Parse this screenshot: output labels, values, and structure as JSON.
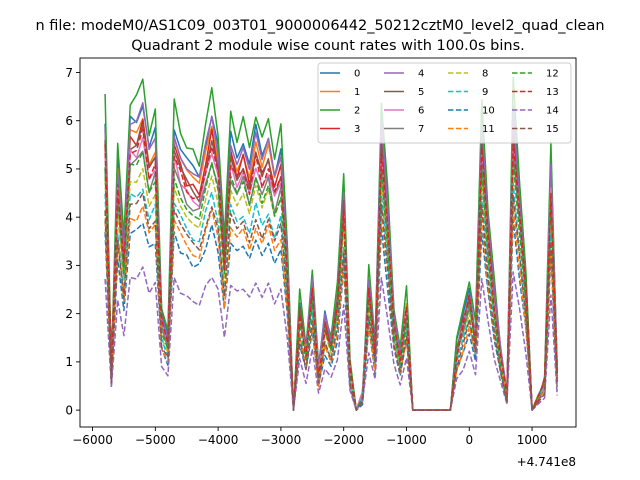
{
  "chart_data": {
    "type": "line",
    "suptitle": "n file: modeM0/AS1C09_003T01_9000006442_50212cztM0_level2_quad_clean",
    "title": "Quadrant 2 module wise count rates with 100.0s bins.",
    "offset_label": "+4.741e8",
    "xlim": [
      -6200,
      1700
    ],
    "ylim": [
      -0.35,
      7.3
    ],
    "xticks": [
      -6000,
      -5000,
      -4000,
      -3000,
      -2000,
      -1000,
      0,
      1000
    ],
    "yticks": [
      0,
      1,
      2,
      3,
      4,
      5,
      6,
      7
    ],
    "grid": false,
    "legend_placement": "top-right",
    "x": [
      -5800,
      -5700,
      -5600,
      -5500,
      -5400,
      -5300,
      -5200,
      -5100,
      -5000,
      -4900,
      -4800,
      -4700,
      -4600,
      -4500,
      -4400,
      -4300,
      -4200,
      -4100,
      -4000,
      -3900,
      -3800,
      -3700,
      -3600,
      -3500,
      -3400,
      -3300,
      -3200,
      -3100,
      -3000,
      -2900,
      -2800,
      -2700,
      -2600,
      -2500,
      -2400,
      -2300,
      -2200,
      -2100,
      -2000,
      -1900,
      -1800,
      -1700,
      -1600,
      -1500,
      -1400,
      -1300,
      -1200,
      -1100,
      -1000,
      -900,
      -800,
      -700,
      -600,
      -500,
      -400,
      -300,
      -200,
      -100,
      0,
      100,
      200,
      300,
      400,
      500,
      600,
      700,
      800,
      900,
      1000,
      1100,
      1200,
      1300,
      1400
    ],
    "base_profile": [
      1.0,
      0.15,
      0.85,
      0.55,
      1.0,
      1.0,
      1.06,
      0.9,
      0.95,
      0.33,
      0.27,
      0.98,
      0.9,
      0.85,
      0.82,
      0.8,
      0.92,
      1.02,
      0.9,
      0.55,
      0.95,
      0.88,
      0.93,
      0.84,
      0.96,
      0.86,
      0.94,
      0.82,
      0.9,
      0.55,
      0.0,
      0.37,
      0.22,
      0.45,
      0.13,
      0.32,
      0.23,
      0.4,
      0.78,
      0.15,
      0.0,
      0.05,
      0.45,
      0.22,
      1.0,
      0.7,
      0.33,
      0.21,
      0.38,
      0.0,
      0.0,
      0.0,
      0.0,
      0.0,
      0.0,
      0.0,
      0.22,
      0.32,
      0.43,
      0.27,
      1.0,
      0.65,
      0.4,
      0.2,
      0.05,
      1.05,
      0.75,
      0.45,
      0.0,
      0.05,
      0.1,
      0.85,
      0.13
    ],
    "series": [
      {
        "name": "0",
        "color": "#1f77b4",
        "dash": false,
        "amp": 6.05
      },
      {
        "name": "1",
        "color": "#ff7f0e",
        "dash": false,
        "amp": 5.75
      },
      {
        "name": "2",
        "color": "#2ca02c",
        "dash": false,
        "amp": 6.45
      },
      {
        "name": "3",
        "color": "#d62728",
        "dash": false,
        "amp": 5.6
      },
      {
        "name": "4",
        "color": "#9467bd",
        "dash": false,
        "amp": 5.9
      },
      {
        "name": "5",
        "color": "#8c564b",
        "dash": false,
        "amp": 5.5
      },
      {
        "name": "6",
        "color": "#e377c2",
        "dash": false,
        "amp": 5.3
      },
      {
        "name": "7",
        "color": "#7f7f7f",
        "dash": false,
        "amp": 5.1
      },
      {
        "name": "8",
        "color": "#bcbd22",
        "dash": true,
        "amp": 4.8
      },
      {
        "name": "9",
        "color": "#17becf",
        "dash": true,
        "amp": 4.4
      },
      {
        "name": "10",
        "color": "#1f77b4",
        "dash": true,
        "amp": 3.7
      },
      {
        "name": "11",
        "color": "#ff7f0e",
        "dash": true,
        "amp": 4.0
      },
      {
        "name": "12",
        "color": "#2ca02c",
        "dash": true,
        "amp": 5.0
      },
      {
        "name": "13",
        "color": "#d62728",
        "dash": true,
        "amp": 5.4
      },
      {
        "name": "14",
        "color": "#9467bd",
        "dash": true,
        "amp": 2.75
      },
      {
        "name": "15",
        "color": "#8c564b",
        "dash": true,
        "amp": 4.2
      }
    ]
  }
}
